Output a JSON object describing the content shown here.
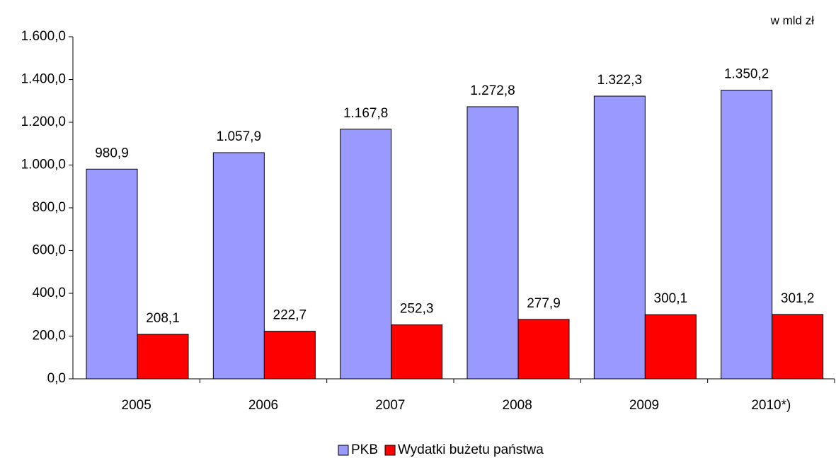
{
  "chart_data": {
    "type": "bar",
    "unit_label": "w mld zł",
    "categories": [
      "2005",
      "2006",
      "2007",
      "2008",
      "2009",
      "2010*)"
    ],
    "series": [
      {
        "name": "PKB",
        "color": "#9999ff",
        "values": [
          980.9,
          1057.9,
          1167.8,
          1272.8,
          1322.3,
          1350.2
        ],
        "value_labels": [
          "980,9",
          "1.057,9",
          "1.167,8",
          "1.272,8",
          "1.322,3",
          "1.350,2"
        ]
      },
      {
        "name": "Wydatki bużetu państwa",
        "color": "#ff0000",
        "values": [
          208.1,
          222.7,
          252.3,
          277.9,
          300.1,
          301.2
        ],
        "value_labels": [
          "208,1",
          "222,7",
          "252,3",
          "277,9",
          "300,1",
          "301,2"
        ]
      }
    ],
    "ylim": [
      0,
      1600
    ],
    "yticks": [
      {
        "value": 0,
        "label": "0,0"
      },
      {
        "value": 200,
        "label": "200,0"
      },
      {
        "value": 400,
        "label": "400,0"
      },
      {
        "value": 600,
        "label": "600,0"
      },
      {
        "value": 800,
        "label": "800,0"
      },
      {
        "value": 1000,
        "label": "1.000,0"
      },
      {
        "value": 1200,
        "label": "1.200,0"
      },
      {
        "value": 1400,
        "label": "1.400,0"
      },
      {
        "value": 1600,
        "label": "1.600,0"
      }
    ],
    "grid": false,
    "legend": "bottom"
  }
}
